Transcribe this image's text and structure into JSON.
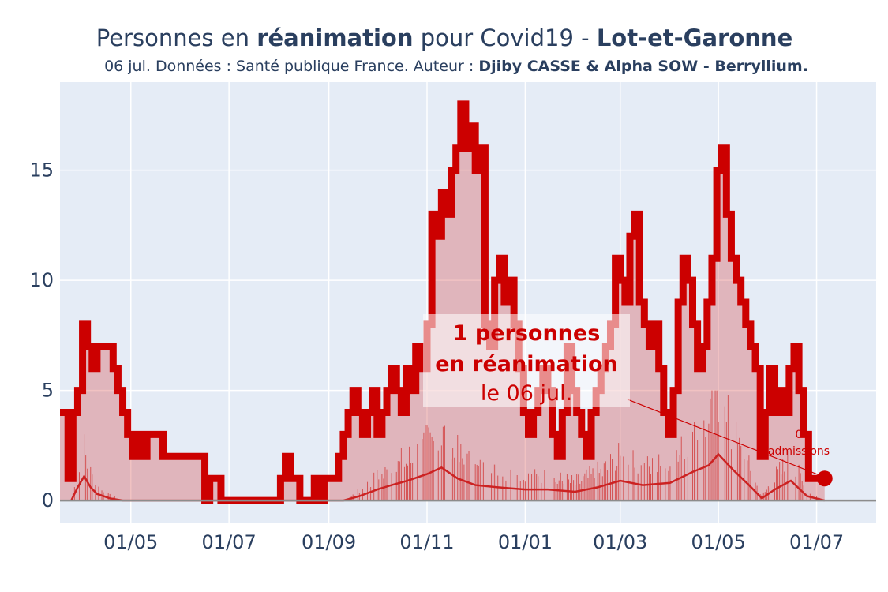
{
  "chart_data": {
    "type": "area",
    "title_parts": [
      {
        "text": "Personnes en ",
        "bold": false
      },
      {
        "text": "réanimation",
        "bold": true
      },
      {
        "text": " pour Covid19 - ",
        "bold": false
      },
      {
        "text": "Lot-et-Garonne",
        "bold": true
      }
    ],
    "subtitle_parts": [
      {
        "text": "06 jul. Données : Santé publique France. Auteur : ",
        "bold": false
      },
      {
        "text": "Djiby CASSE & Alpha SOW - Berryllium.",
        "bold": true
      }
    ],
    "xlabel": "",
    "ylabel": "",
    "x_range": [
      "2020-03-18",
      "2021-08-07"
    ],
    "y_range": [
      -1,
      19
    ],
    "x_ticks": [
      {
        "date": "2020-05-01",
        "label": "01/05"
      },
      {
        "date": "2020-07-01",
        "label": "01/07"
      },
      {
        "date": "2020-09-01",
        "label": "01/09"
      },
      {
        "date": "2020-11-01",
        "label": "01/11"
      },
      {
        "date": "2021-01-01",
        "label": "01/01"
      },
      {
        "date": "2021-03-01",
        "label": "01/03"
      },
      {
        "date": "2021-05-01",
        "label": "01/05"
      },
      {
        "date": "2021-07-01",
        "label": "01/07"
      }
    ],
    "y_ticks": [
      0,
      5,
      10,
      15
    ],
    "grid": true,
    "colors": {
      "plot_bg": "#e5ecf6",
      "grid": "#ffffff",
      "zero_line": "#8c8c8c",
      "main_line": "#cc0000",
      "area_fill": "rgba(214,80,80,0.35)",
      "admissions_line": "#cc2222",
      "title": "#2a3f5f"
    },
    "series": [
      {
        "kind": "reanimation",
        "points": [
          [
            "2020-03-18",
            4
          ],
          [
            "2020-03-22",
            4
          ],
          [
            "2020-03-23",
            1
          ],
          [
            "2020-03-26",
            4
          ],
          [
            "2020-03-29",
            5
          ],
          [
            "2020-04-01",
            8
          ],
          [
            "2020-04-04",
            7
          ],
          [
            "2020-04-07",
            6
          ],
          [
            "2020-04-10",
            7
          ],
          [
            "2020-04-16",
            7
          ],
          [
            "2020-04-20",
            6
          ],
          [
            "2020-04-23",
            5
          ],
          [
            "2020-04-26",
            4
          ],
          [
            "2020-04-29",
            3
          ],
          [
            "2020-05-02",
            2
          ],
          [
            "2020-05-05",
            3
          ],
          [
            "2020-05-08",
            2
          ],
          [
            "2020-05-11",
            3
          ],
          [
            "2020-05-17",
            3
          ],
          [
            "2020-05-21",
            2
          ],
          [
            "2020-06-10",
            2
          ],
          [
            "2020-06-14",
            2
          ],
          [
            "2020-06-16",
            0
          ],
          [
            "2020-06-19",
            1
          ],
          [
            "2020-06-23",
            1
          ],
          [
            "2020-06-26",
            0
          ],
          [
            "2020-07-30",
            0
          ],
          [
            "2020-08-02",
            1
          ],
          [
            "2020-08-05",
            2
          ],
          [
            "2020-08-08",
            1
          ],
          [
            "2020-08-12",
            1
          ],
          [
            "2020-08-14",
            0
          ],
          [
            "2020-08-20",
            0
          ],
          [
            "2020-08-23",
            1
          ],
          [
            "2020-08-26",
            0
          ],
          [
            "2020-08-29",
            1
          ],
          [
            "2020-09-04",
            1
          ],
          [
            "2020-09-07",
            2
          ],
          [
            "2020-09-10",
            3
          ],
          [
            "2020-09-13",
            4
          ],
          [
            "2020-09-16",
            5
          ],
          [
            "2020-09-19",
            4
          ],
          [
            "2020-09-22",
            3
          ],
          [
            "2020-09-25",
            4
          ],
          [
            "2020-09-28",
            5
          ],
          [
            "2020-10-01",
            3
          ],
          [
            "2020-10-04",
            4
          ],
          [
            "2020-10-07",
            5
          ],
          [
            "2020-10-10",
            6
          ],
          [
            "2020-10-13",
            5
          ],
          [
            "2020-10-16",
            4
          ],
          [
            "2020-10-19",
            6
          ],
          [
            "2020-10-22",
            5
          ],
          [
            "2020-10-25",
            7
          ],
          [
            "2020-10-29",
            6
          ],
          [
            "2020-11-01",
            8
          ],
          [
            "2020-11-04",
            13
          ],
          [
            "2020-11-07",
            12
          ],
          [
            "2020-11-10",
            14
          ],
          [
            "2020-11-13",
            13
          ],
          [
            "2020-11-16",
            15
          ],
          [
            "2020-11-19",
            16
          ],
          [
            "2020-11-22",
            18
          ],
          [
            "2020-11-25",
            16
          ],
          [
            "2020-11-28",
            17
          ],
          [
            "2020-12-01",
            15
          ],
          [
            "2020-12-04",
            16
          ],
          [
            "2020-12-07",
            8
          ],
          [
            "2020-12-10",
            7
          ],
          [
            "2020-12-13",
            10
          ],
          [
            "2020-12-16",
            11
          ],
          [
            "2020-12-19",
            9
          ],
          [
            "2020-12-22",
            10
          ],
          [
            "2020-12-25",
            8
          ],
          [
            "2020-12-28",
            6
          ],
          [
            "2020-12-31",
            4
          ],
          [
            "2021-01-03",
            3
          ],
          [
            "2021-01-06",
            4
          ],
          [
            "2021-01-09",
            5
          ],
          [
            "2021-01-12",
            6
          ],
          [
            "2021-01-15",
            5
          ],
          [
            "2021-01-18",
            3
          ],
          [
            "2021-01-21",
            2
          ],
          [
            "2021-01-24",
            4
          ],
          [
            "2021-01-27",
            7
          ],
          [
            "2021-01-30",
            5
          ],
          [
            "2021-02-02",
            4
          ],
          [
            "2021-02-05",
            3
          ],
          [
            "2021-02-08",
            2
          ],
          [
            "2021-02-11",
            4
          ],
          [
            "2021-02-14",
            5
          ],
          [
            "2021-02-17",
            6
          ],
          [
            "2021-02-20",
            7
          ],
          [
            "2021-02-23",
            8
          ],
          [
            "2021-02-26",
            11
          ],
          [
            "2021-03-01",
            10
          ],
          [
            "2021-03-04",
            9
          ],
          [
            "2021-03-07",
            12
          ],
          [
            "2021-03-10",
            13
          ],
          [
            "2021-03-13",
            9
          ],
          [
            "2021-03-16",
            8
          ],
          [
            "2021-03-19",
            7
          ],
          [
            "2021-03-22",
            8
          ],
          [
            "2021-03-25",
            6
          ],
          [
            "2021-03-28",
            4
          ],
          [
            "2021-03-31",
            3
          ],
          [
            "2021-04-03",
            5
          ],
          [
            "2021-04-06",
            9
          ],
          [
            "2021-04-09",
            11
          ],
          [
            "2021-04-12",
            10
          ],
          [
            "2021-04-15",
            8
          ],
          [
            "2021-04-18",
            6
          ],
          [
            "2021-04-21",
            7
          ],
          [
            "2021-04-24",
            9
          ],
          [
            "2021-04-27",
            11
          ],
          [
            "2021-04-30",
            15
          ],
          [
            "2021-05-03",
            16
          ],
          [
            "2021-05-06",
            13
          ],
          [
            "2021-05-09",
            11
          ],
          [
            "2021-05-12",
            10
          ],
          [
            "2021-05-15",
            9
          ],
          [
            "2021-05-18",
            8
          ],
          [
            "2021-05-21",
            7
          ],
          [
            "2021-05-24",
            6
          ],
          [
            "2021-05-27",
            2
          ],
          [
            "2021-05-30",
            4
          ],
          [
            "2021-06-02",
            6
          ],
          [
            "2021-06-05",
            4
          ],
          [
            "2021-06-08",
            5
          ],
          [
            "2021-06-11",
            4
          ],
          [
            "2021-06-14",
            6
          ],
          [
            "2021-06-17",
            7
          ],
          [
            "2021-06-20",
            5
          ],
          [
            "2021-06-23",
            3
          ],
          [
            "2021-06-26",
            1
          ],
          [
            "2021-07-06",
            1
          ]
        ]
      },
      {
        "kind": "admissions",
        "points": [
          [
            "2020-03-25",
            0
          ],
          [
            "2020-03-29",
            0.6
          ],
          [
            "2020-04-02",
            1.1
          ],
          [
            "2020-04-06",
            0.6
          ],
          [
            "2020-04-10",
            0.3
          ],
          [
            "2020-04-18",
            0.1
          ],
          [
            "2020-04-26",
            0
          ],
          [
            "2020-09-10",
            0
          ],
          [
            "2020-09-20",
            0.2
          ],
          [
            "2020-10-01",
            0.5
          ],
          [
            "2020-10-10",
            0.7
          ],
          [
            "2020-10-20",
            0.9
          ],
          [
            "2020-11-01",
            1.2
          ],
          [
            "2020-11-10",
            1.5
          ],
          [
            "2020-11-20",
            1.0
          ],
          [
            "2020-12-01",
            0.7
          ],
          [
            "2020-12-15",
            0.6
          ],
          [
            "2021-01-01",
            0.5
          ],
          [
            "2021-01-15",
            0.5
          ],
          [
            "2021-02-01",
            0.4
          ],
          [
            "2021-02-15",
            0.6
          ],
          [
            "2021-03-01",
            0.9
          ],
          [
            "2021-03-15",
            0.7
          ],
          [
            "2021-04-01",
            0.8
          ],
          [
            "2021-04-15",
            1.3
          ],
          [
            "2021-04-25",
            1.6
          ],
          [
            "2021-05-01",
            2.1
          ],
          [
            "2021-05-10",
            1.4
          ],
          [
            "2021-05-20",
            0.7
          ],
          [
            "2021-05-28",
            0.1
          ],
          [
            "2021-06-05",
            0.5
          ],
          [
            "2021-06-15",
            0.9
          ],
          [
            "2021-06-25",
            0.2
          ],
          [
            "2021-07-06",
            0
          ]
        ]
      }
    ],
    "annotation": {
      "line1": "1 personnes",
      "line2": "en réanimation",
      "line3": "le 06 jul.",
      "last_date": "2021-07-06",
      "last_value": 1
    },
    "admissions_annotation": {
      "line1": "0",
      "line2": "admissions"
    }
  }
}
